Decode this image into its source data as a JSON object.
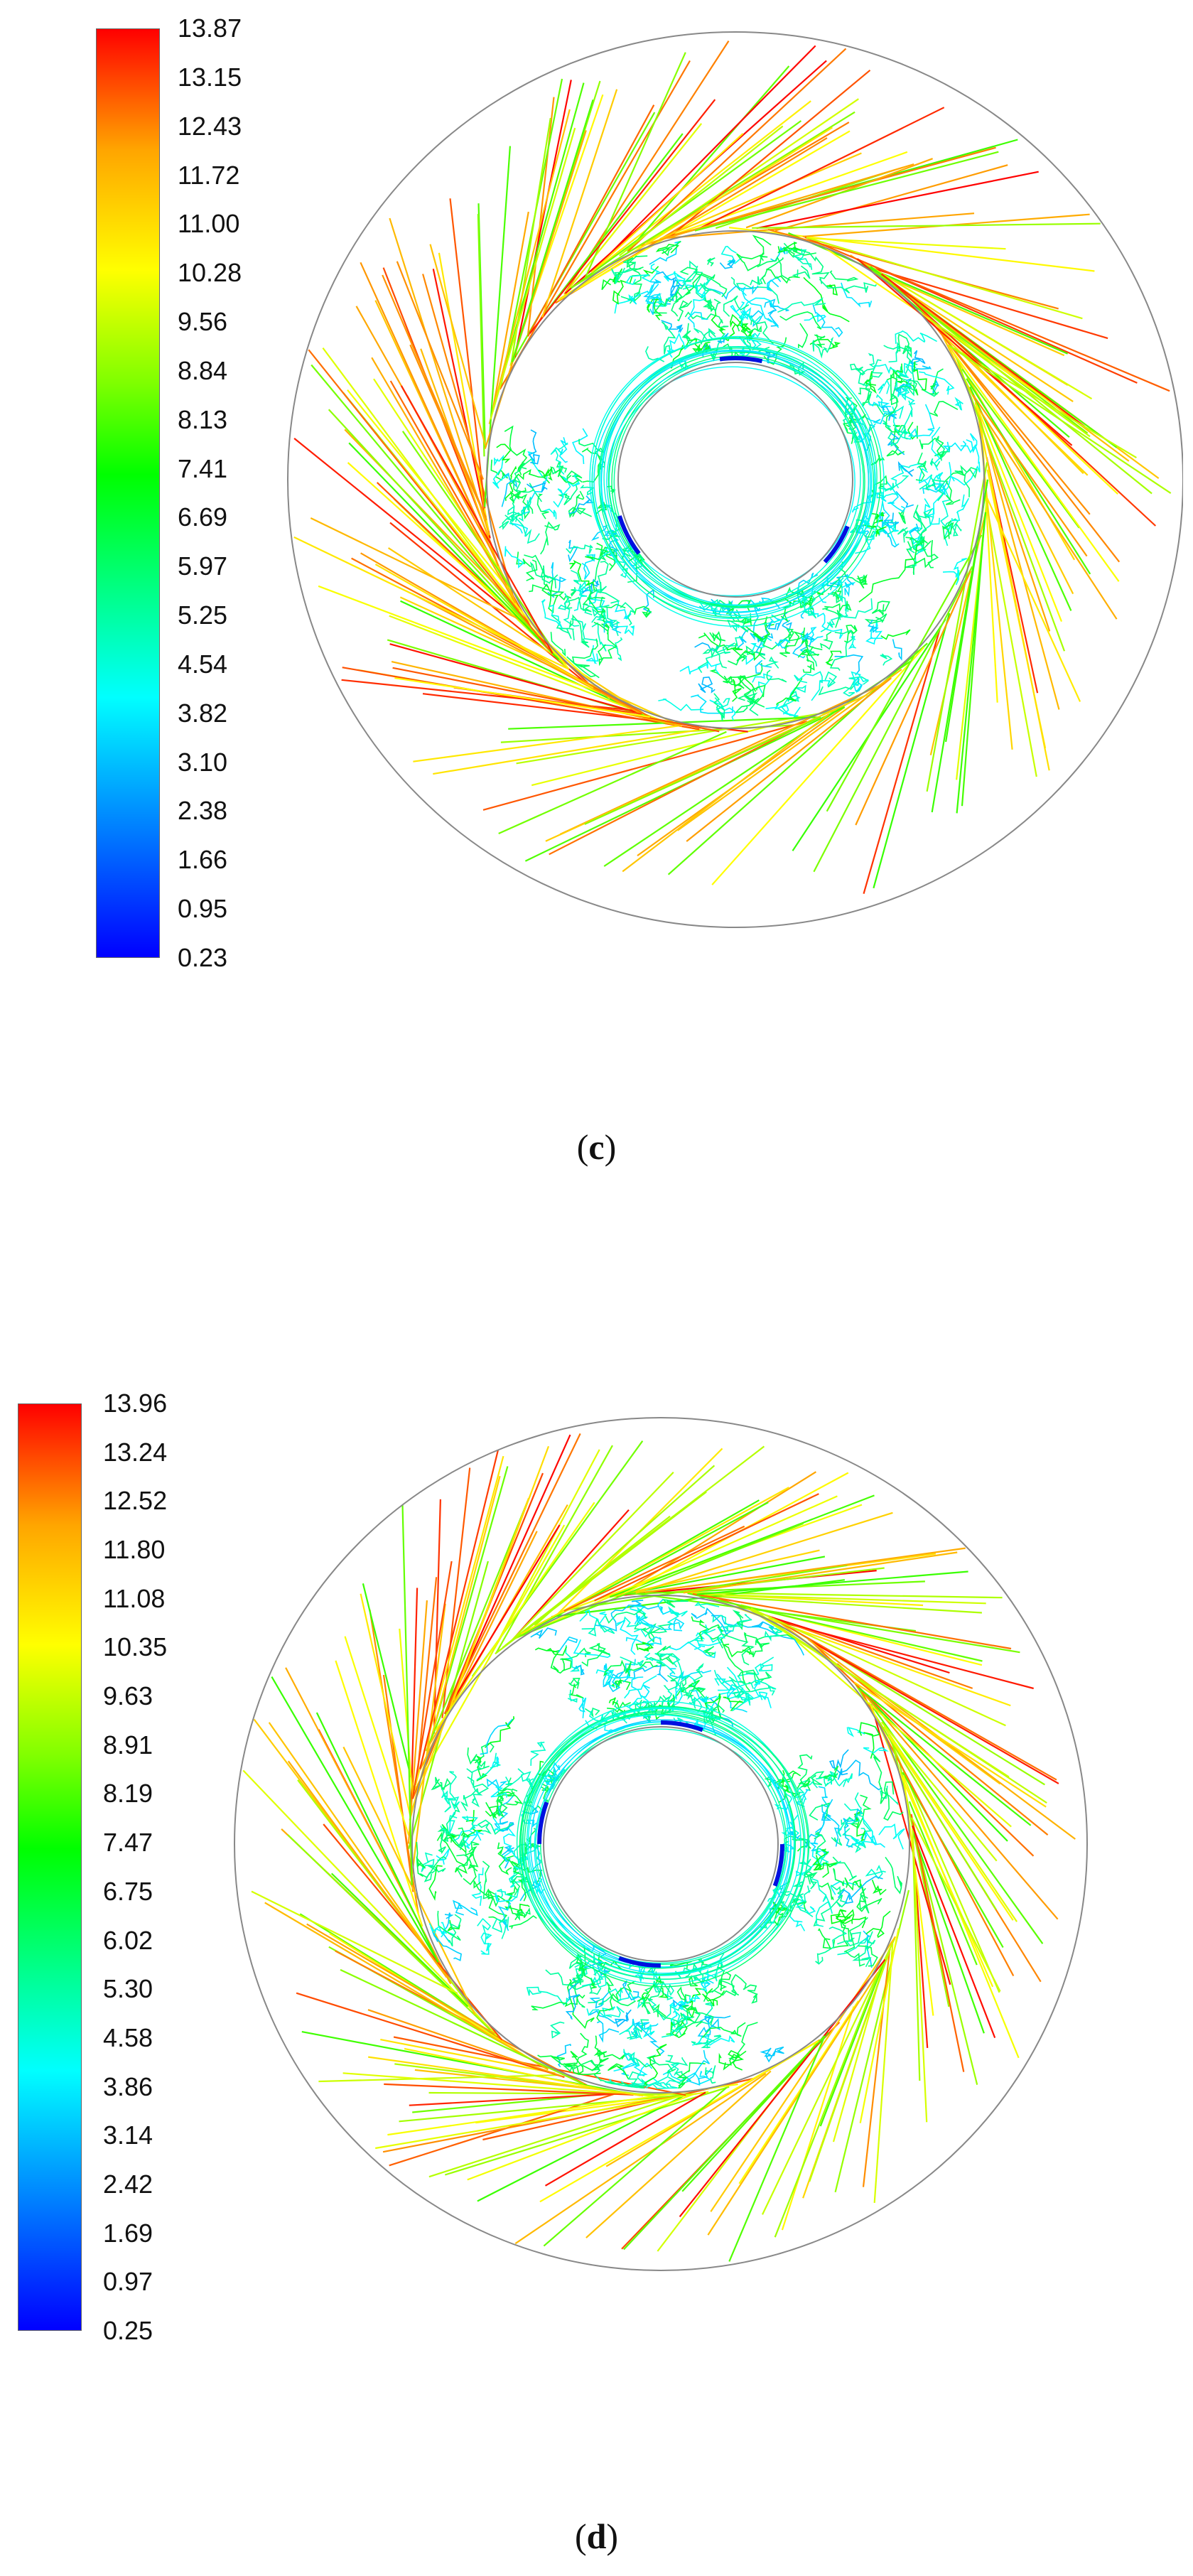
{
  "panels": [
    {
      "id": "c",
      "caption_open": "(",
      "caption_letter": "c",
      "caption_close": ")",
      "colorbar_ticks": [
        "13.87",
        "13.15",
        "12.43",
        "11.72",
        "11.00",
        "10.28",
        "9.56",
        "8.84",
        "8.13",
        "7.41",
        "6.69",
        "5.97",
        "5.25",
        "4.54",
        "3.82",
        "3.10",
        "2.38",
        "1.66",
        "0.95",
        "0.23"
      ],
      "colorbar_min": 0.23,
      "colorbar_max": 13.87,
      "colormap": [
        "#0000ff",
        "#0080ff",
        "#00ffff",
        "#00ff80",
        "#00ff00",
        "#80ff00",
        "#ffff00",
        "#ffa500",
        "#ff0000"
      ],
      "blade_count": 3
    },
    {
      "id": "d",
      "caption_open": "(",
      "caption_letter": "d",
      "caption_close": ")",
      "colorbar_ticks": [
        "13.96",
        "13.24",
        "12.52",
        "11.80",
        "11.08",
        "10.35",
        "9.63",
        "8.91",
        "8.19",
        "7.47",
        "6.75",
        "6.02",
        "5.30",
        "4.58",
        "3.86",
        "3.14",
        "2.42",
        "1.69",
        "0.97",
        "0.25"
      ],
      "colorbar_min": 0.25,
      "colorbar_max": 13.96,
      "colormap": [
        "#0000ff",
        "#0080ff",
        "#00ffff",
        "#00ff80",
        "#00ff00",
        "#80ff00",
        "#ffff00",
        "#ffa500",
        "#ff0000"
      ],
      "blade_count": 4
    }
  ]
}
